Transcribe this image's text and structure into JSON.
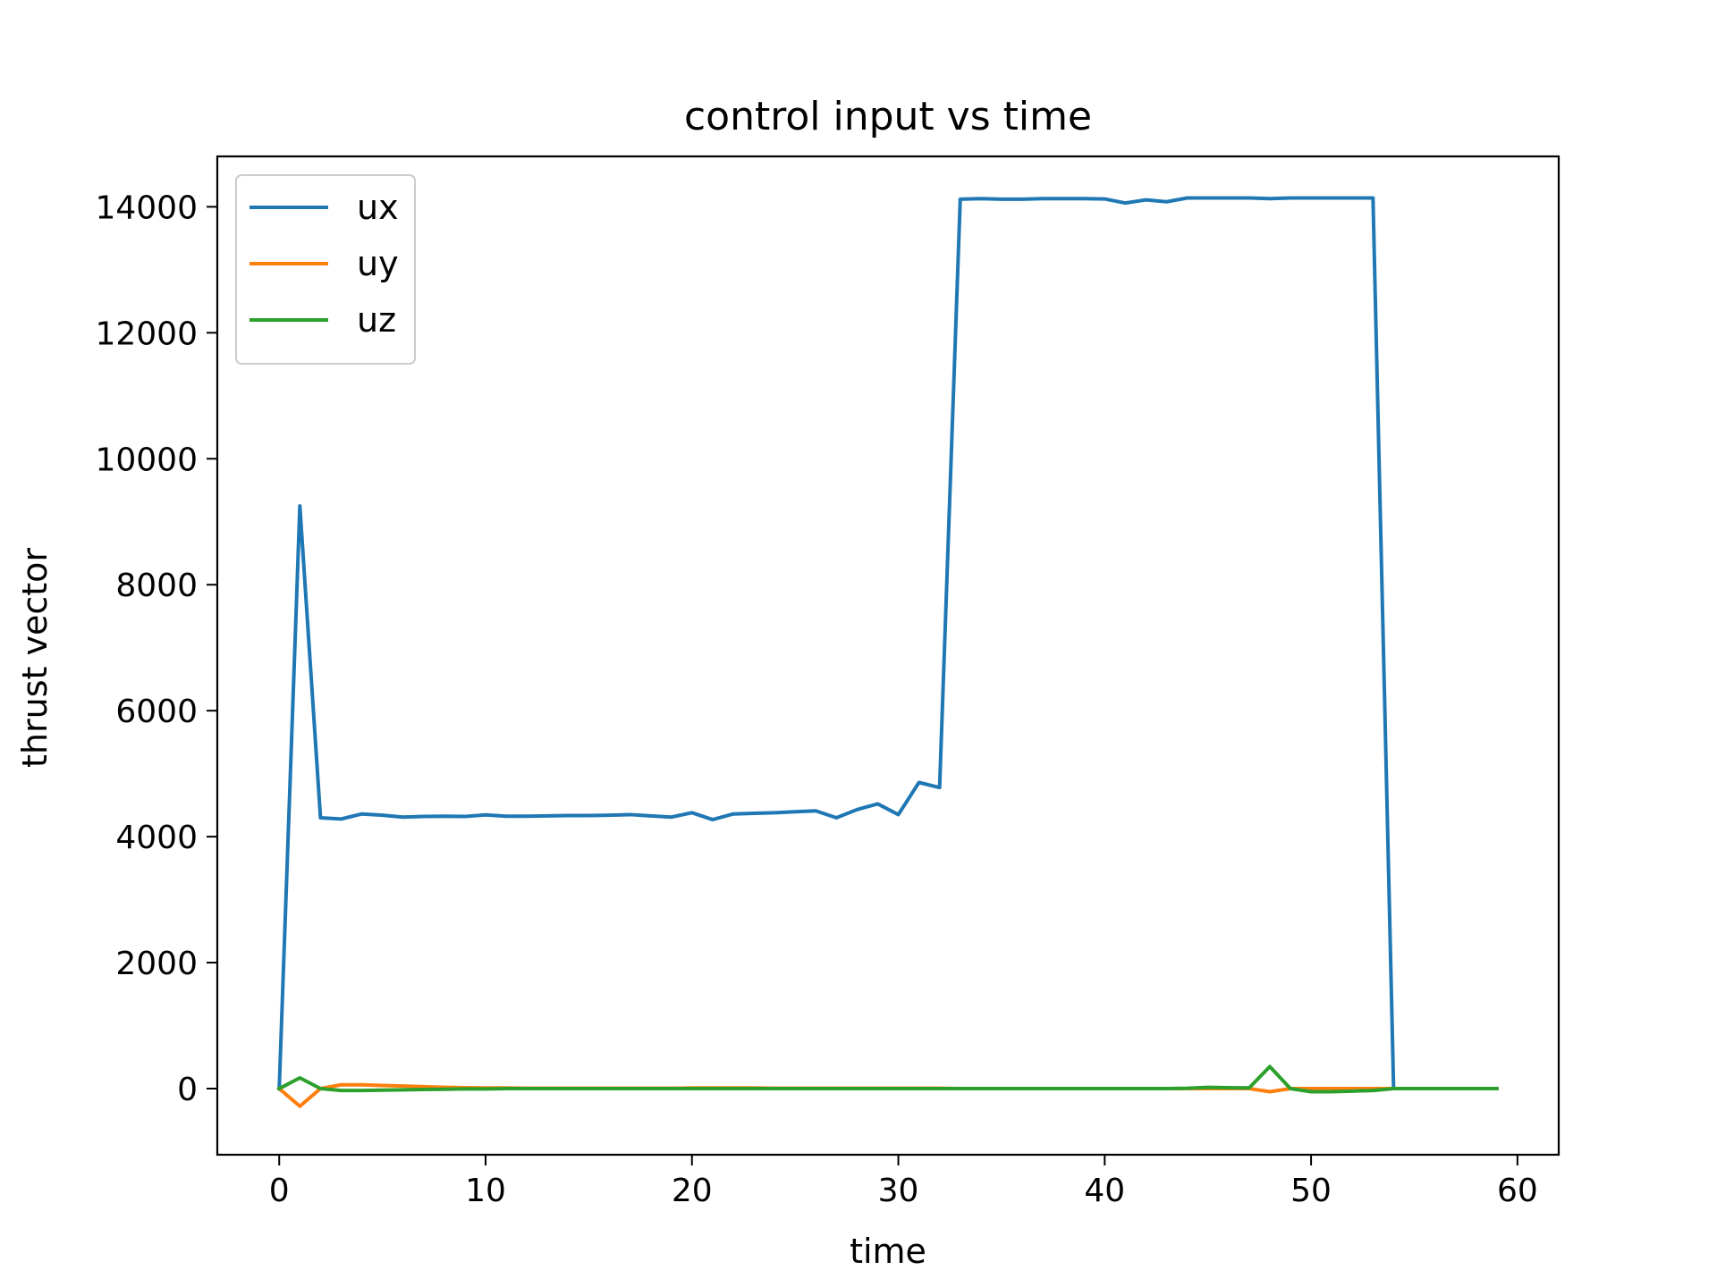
{
  "chart_data": {
    "type": "line",
    "title": "control input vs time",
    "xlabel": "time",
    "ylabel": "thrust vector",
    "xlim": [
      -3,
      62
    ],
    "ylim": [
      -1050,
      14800
    ],
    "xticks": [
      0,
      10,
      20,
      30,
      40,
      50,
      60
    ],
    "yticks": [
      0,
      2000,
      4000,
      6000,
      8000,
      10000,
      12000,
      14000
    ],
    "grid": false,
    "legend_position": "upper-left",
    "x": [
      0,
      1,
      2,
      3,
      4,
      5,
      6,
      7,
      8,
      9,
      10,
      11,
      12,
      13,
      14,
      15,
      16,
      17,
      18,
      19,
      20,
      21,
      22,
      23,
      24,
      25,
      26,
      27,
      28,
      29,
      30,
      31,
      32,
      33,
      34,
      35,
      36,
      37,
      38,
      39,
      40,
      41,
      42,
      43,
      44,
      45,
      46,
      47,
      48,
      49,
      50,
      51,
      52,
      53,
      54,
      55,
      56,
      57,
      58,
      59
    ],
    "series": [
      {
        "name": "ux",
        "color": "#1f77b4",
        "values": [
          0,
          9250,
          4300,
          4280,
          4360,
          4340,
          4310,
          4320,
          4325,
          4320,
          4345,
          4325,
          4325,
          4330,
          4335,
          4335,
          4340,
          4350,
          4330,
          4310,
          4380,
          4270,
          4360,
          4370,
          4380,
          4395,
          4410,
          4300,
          4430,
          4520,
          4350,
          4860,
          4780,
          14120,
          14130,
          14120,
          14120,
          14130,
          14130,
          14130,
          14125,
          14060,
          14110,
          14080,
          14140,
          14140,
          14140,
          14140,
          14130,
          14140,
          14140,
          14140,
          14140,
          14140,
          0,
          0,
          0,
          0,
          0,
          0
        ]
      },
      {
        "name": "uy",
        "color": "#ff7f0e",
        "values": [
          0,
          -280,
          0,
          60,
          60,
          50,
          40,
          30,
          20,
          15,
          10,
          10,
          5,
          5,
          5,
          5,
          5,
          5,
          5,
          5,
          10,
          10,
          10,
          10,
          5,
          5,
          5,
          5,
          5,
          5,
          5,
          5,
          5,
          0,
          0,
          0,
          0,
          0,
          0,
          0,
          0,
          0,
          0,
          0,
          0,
          0,
          0,
          0,
          -50,
          0,
          0,
          0,
          0,
          0,
          0,
          0,
          0,
          0,
          0,
          0
        ]
      },
      {
        "name": "uz",
        "color": "#2ca02c",
        "values": [
          0,
          170,
          0,
          -30,
          -30,
          -25,
          -20,
          -15,
          -10,
          -5,
          -5,
          0,
          0,
          0,
          0,
          0,
          0,
          0,
          0,
          0,
          0,
          0,
          0,
          0,
          0,
          0,
          0,
          0,
          0,
          0,
          0,
          0,
          0,
          0,
          0,
          0,
          0,
          0,
          0,
          0,
          0,
          0,
          0,
          0,
          5,
          20,
          15,
          10,
          350,
          0,
          -50,
          -50,
          -40,
          -30,
          0,
          0,
          0,
          0,
          0,
          0
        ]
      }
    ]
  }
}
